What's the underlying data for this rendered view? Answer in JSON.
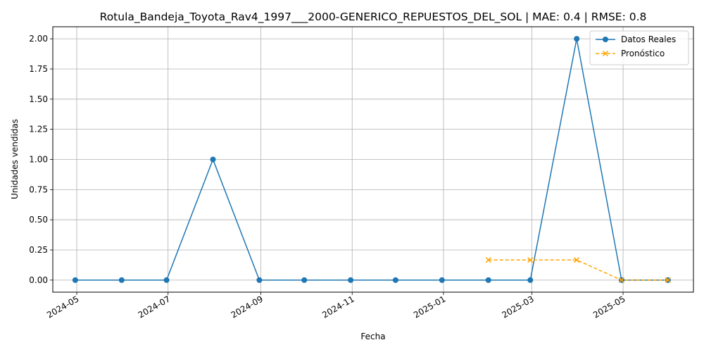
{
  "chart_data": {
    "type": "line",
    "title": "Rotula_Bandeja_Toyota_Rav4_1997___2000-GENERICO_REPUESTOS_DEL_SOL | MAE: 0.4 | RMSE: 0.8",
    "xlabel": "Fecha",
    "ylabel": "Unidades vendidas",
    "x_ticks": [
      "2024-05",
      "2024-07",
      "2024-09",
      "2024-11",
      "2025-01",
      "2025-03",
      "2025-05"
    ],
    "y_ticks": [
      "0.00",
      "0.25",
      "0.50",
      "0.75",
      "1.00",
      "1.25",
      "1.50",
      "1.75",
      "2.00"
    ],
    "xlim": [
      "2024-04-15",
      "2025-06-17"
    ],
    "ylim": [
      -0.1,
      2.1
    ],
    "grid": true,
    "legend_position": "top-right",
    "series": [
      {
        "name": "Datos Reales",
        "color": "#1f77b4",
        "marker": "circle",
        "linestyle": "solid",
        "x": [
          "2024-04-30",
          "2024-05-31",
          "2024-06-30",
          "2024-07-31",
          "2024-08-31",
          "2024-09-30",
          "2024-10-31",
          "2024-11-30",
          "2024-12-31",
          "2025-01-31",
          "2025-02-28",
          "2025-03-31",
          "2025-04-30",
          "2025-05-31"
        ],
        "values": [
          0,
          0,
          0,
          1,
          0,
          0,
          0,
          0,
          0,
          0,
          0,
          2,
          0,
          0
        ]
      },
      {
        "name": "Pronóstico",
        "color": "#ffa500",
        "marker": "x",
        "linestyle": "dashed",
        "x": [
          "2025-01-31",
          "2025-02-28",
          "2025-03-31",
          "2025-04-30",
          "2025-05-31"
        ],
        "values": [
          0.1667,
          0.1667,
          0.1667,
          0,
          0
        ]
      }
    ]
  }
}
